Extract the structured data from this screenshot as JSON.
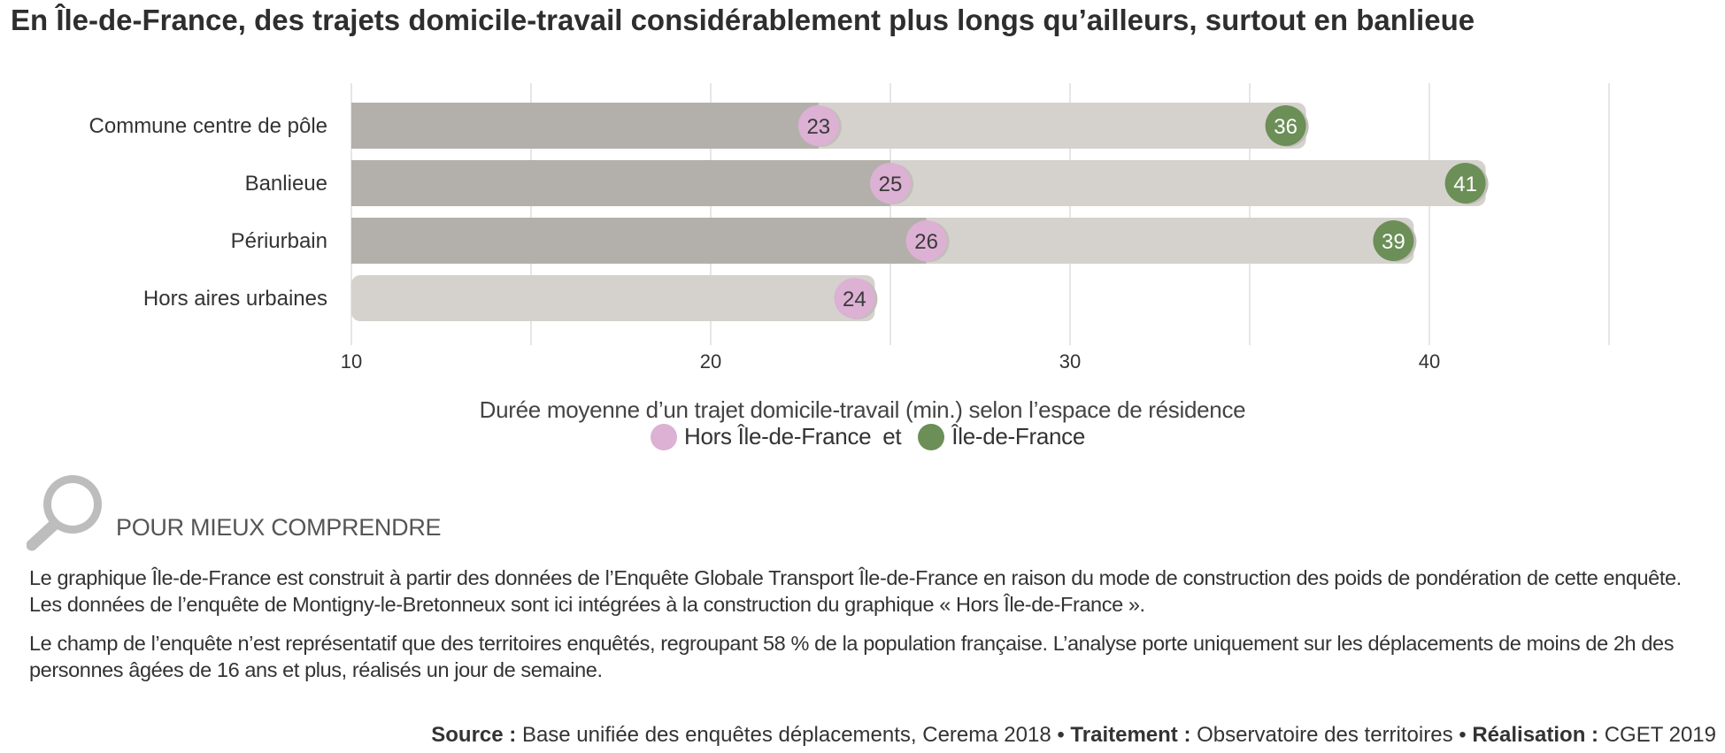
{
  "title": "En Île-de-France, des trajets domicile-travail considérablement plus longs qu’ailleurs, surtout en banlieue",
  "chart_data": {
    "type": "bar",
    "orientation": "horizontal",
    "categories": [
      "Commune centre de pôle",
      "Banlieue",
      "Périurbain",
      "Hors aires urbaines"
    ],
    "series": [
      {
        "name": "Hors Île-de-France",
        "values": [
          23,
          25,
          26,
          24
        ],
        "color": "#dcb1d4",
        "bar_color": "#b3afaa"
      },
      {
        "name": "Île-de-France",
        "values": [
          36,
          41,
          39,
          null
        ],
        "color": "#6b8f57",
        "bar_color": "#d5d2cd"
      }
    ],
    "xlim": [
      10,
      45
    ],
    "xticks": [
      10,
      20,
      30,
      40
    ],
    "xlabel": "Durée moyenne d’un trajet domicile-travail (min.) selon l’espace de résidence",
    "grid": true,
    "legend_position": "bottom"
  },
  "legend": {
    "item1": "Hors Île-de-France",
    "connector": "et",
    "item2": "Île-de-France"
  },
  "understand": {
    "icon": "magnifier-icon",
    "title": "POUR MIEUX COMPRENDRE",
    "paragraph1": "Le graphique Île-de-France est construit à partir des données de l’Enquête Globale Transport Île-de-France en raison du mode de construction des poids de pondération de cette enquête. Les données de l’enquête de Montigny-le-Bretonneux sont ici intégrées à la construction du graphique « Hors Île-de-France ».",
    "paragraph2": "Le champ de l’enquête n’est représentatif que des territoires enquêtés, regroupant 58 % de la population française. L’analyse porte uniquement sur les déplacements de moins de 2h des personnes âgées de 16 ans et plus, réalisés un jour de semaine."
  },
  "source": {
    "source_label": "Source :",
    "source_text": "Base unifiée des enquêtes déplacements, Cerema 2018",
    "separator": "•",
    "treatment_label": "Traitement :",
    "treatment_text": "Observatoire des territoires",
    "realisation_label": "Réalisation :",
    "realisation_text": "CGET 2019"
  }
}
